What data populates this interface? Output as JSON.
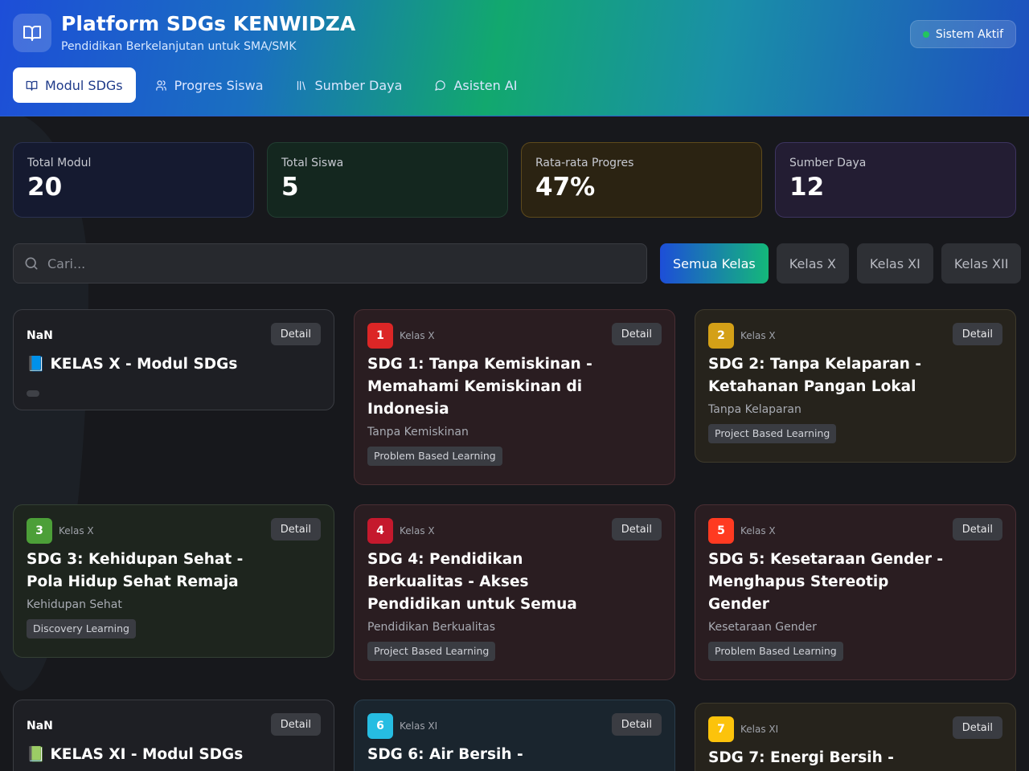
{
  "app": {
    "title": "Platform SDGs KENWIDZA",
    "subtitle": "Pendidikan Berkelanjutan untuk SMA/SMK",
    "status": "Sistem Aktif"
  },
  "nav": {
    "tabs": [
      {
        "label": "Modul SDGs",
        "icon": "book-icon"
      },
      {
        "label": "Progres Siswa",
        "icon": "users-icon"
      },
      {
        "label": "Sumber Daya",
        "icon": "library-icon"
      },
      {
        "label": "Asisten AI",
        "icon": "chat-icon"
      }
    ]
  },
  "stats": [
    {
      "label": "Total Modul",
      "value": "20"
    },
    {
      "label": "Total Siswa",
      "value": "5"
    },
    {
      "label": "Rata-rata Progres",
      "value": "47%"
    },
    {
      "label": "Sumber Daya",
      "value": "12"
    }
  ],
  "search": {
    "placeholder": "Cari..."
  },
  "filters": [
    "Semua Kelas",
    "Kelas X",
    "Kelas XI",
    "Kelas XII"
  ],
  "cards": [
    {
      "badge": "NaN",
      "title": "📘 KELAS X - Modul SDGs",
      "detail": "Detail"
    },
    {
      "number": "1",
      "kelas": "Kelas X",
      "title": "SDG 1: Tanpa Kemiskinan - Memahami Kemiskinan di Indonesia",
      "subtitle": "Tanpa Kemiskinan",
      "tag": "Problem Based Learning",
      "detail": "Detail",
      "color": "#dc2626"
    },
    {
      "number": "2",
      "kelas": "Kelas X",
      "title": "SDG 2: Tanpa Kelaparan - Ketahanan Pangan Lokal",
      "subtitle": "Tanpa Kelaparan",
      "tag": "Project Based Learning",
      "detail": "Detail",
      "color": "#d4a017"
    },
    {
      "number": "3",
      "kelas": "Kelas X",
      "title": "SDG 3: Kehidupan Sehat - Pola Hidup Sehat Remaja",
      "subtitle": "Kehidupan Sehat",
      "tag": "Discovery Learning",
      "detail": "Detail",
      "color": "#4c9f38"
    },
    {
      "number": "4",
      "kelas": "Kelas X",
      "title": "SDG 4: Pendidikan Berkualitas - Akses Pendidikan untuk Semua",
      "subtitle": "Pendidikan Berkualitas",
      "tag": "Project Based Learning",
      "detail": "Detail",
      "color": "#c5192d"
    },
    {
      "number": "5",
      "kelas": "Kelas X",
      "title": "SDG 5: Kesetaraan Gender - Menghapus Stereotip Gender",
      "subtitle": "Kesetaraan Gender",
      "tag": "Problem Based Learning",
      "detail": "Detail",
      "color": "#ff3a21"
    },
    {
      "badge": "NaN",
      "title": "📗 KELAS XI - Modul SDGs",
      "detail": "Detail"
    },
    {
      "number": "6",
      "kelas": "Kelas XI",
      "title": "SDG 6: Air Bersih -",
      "detail": "Detail",
      "color": "#26bde2"
    },
    {
      "number": "7",
      "kelas": "Kelas XI",
      "title": "SDG 7: Energi Bersih -",
      "detail": "Detail",
      "color": "#fcc30b"
    }
  ]
}
